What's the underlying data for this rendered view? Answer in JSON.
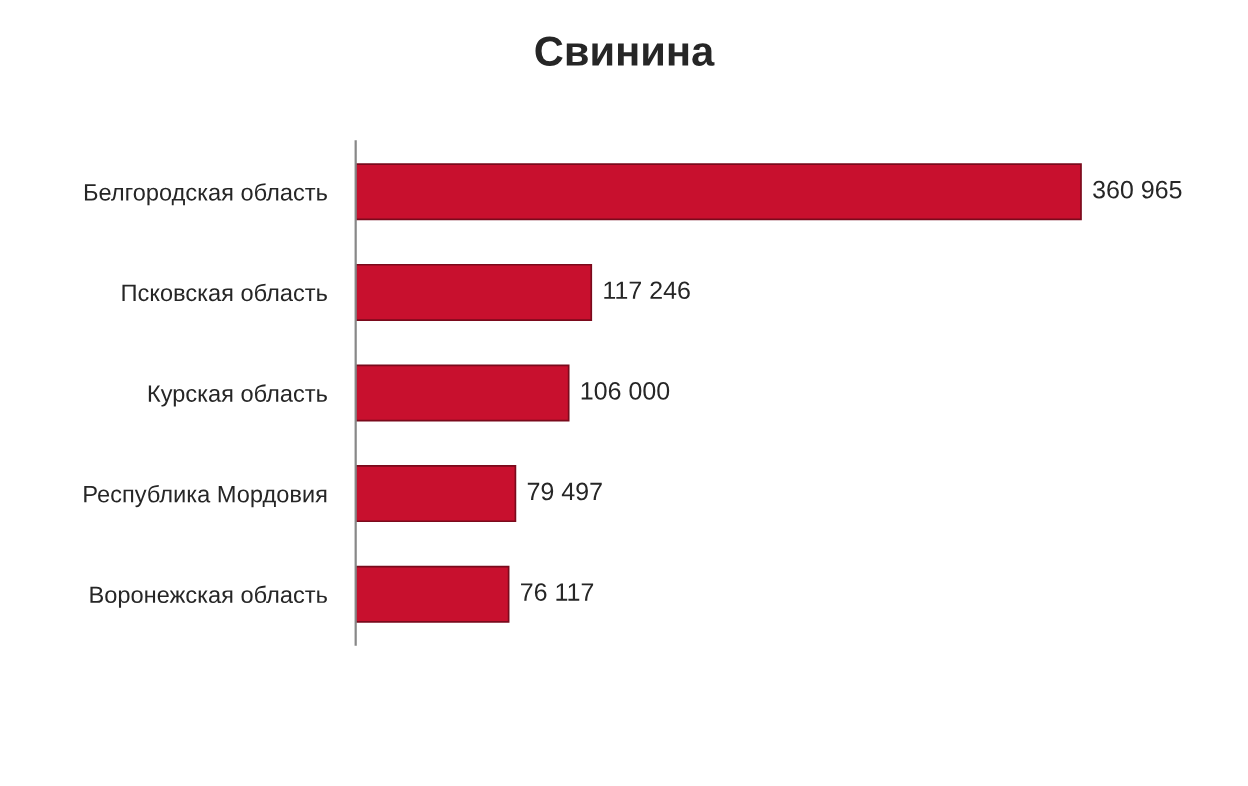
{
  "chart_data": {
    "type": "bar",
    "orientation": "horizontal",
    "title": "Свинина",
    "categories": [
      "Белгородская область",
      "Псковская область",
      "Курская область",
      "Республика Мордовия",
      "Воронежская область"
    ],
    "values": [
      360965,
      117246,
      106000,
      79497,
      76117
    ],
    "value_labels": [
      "360 965",
      "117 246",
      "106 000",
      "79 497",
      "76 117"
    ],
    "color": "#c8102e",
    "tick_labels": "y",
    "grid": false,
    "legend": false
  }
}
